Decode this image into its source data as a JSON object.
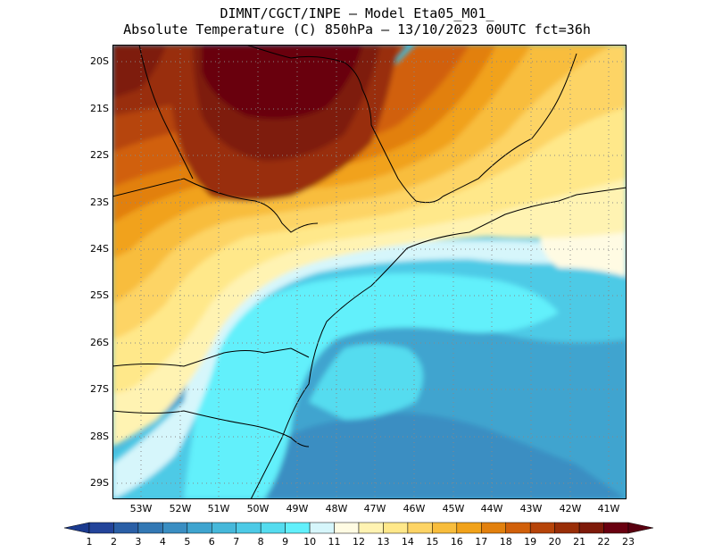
{
  "title": {
    "line1": "DIMNT/CGCT/INPE –  Model Eta05_M01_",
    "line2": "Absolute Temperature (C) 850hPa –  13/10/2023 00UTC fct=36h"
  },
  "latitude_labels": [
    "20S",
    "21S",
    "22S",
    "23S",
    "24S",
    "25S",
    "26S",
    "27S",
    "28S",
    "29S"
  ],
  "longitude_labels": [
    "53W",
    "52W",
    "51W",
    "50W",
    "49W",
    "48W",
    "47W",
    "46W",
    "45W",
    "44W",
    "43W",
    "42W",
    "41W"
  ],
  "colorbar": {
    "labels": [
      "1",
      "2",
      "3",
      "4",
      "5",
      "6",
      "7",
      "8",
      "9",
      "10",
      "11",
      "12",
      "13",
      "14",
      "15",
      "16",
      "17",
      "18",
      "19",
      "20",
      "21",
      "22",
      "23"
    ],
    "colors": [
      "#23449a",
      "#2a5fa6",
      "#3378b4",
      "#3a8ec2",
      "#3fa4cf",
      "#46b8da",
      "#4dcae6",
      "#55dcef",
      "#62f0fb",
      "#d6f6fb",
      "#fffbe3",
      "#fff3b2",
      "#ffe88a",
      "#fdd465",
      "#f8bd3c",
      "#f1a21a",
      "#e2800d",
      "#d1600a",
      "#b64409",
      "#992e07",
      "#7e1a09",
      "#690010"
    ],
    "end_colors": {
      "low": "#1b3a8e",
      "high": "#5a0010"
    }
  },
  "map": {
    "extent": {
      "lon": [
        -53.8,
        -40.6
      ],
      "lat": [
        -29.4,
        -19.8
      ]
    },
    "grid": "dotted"
  }
}
